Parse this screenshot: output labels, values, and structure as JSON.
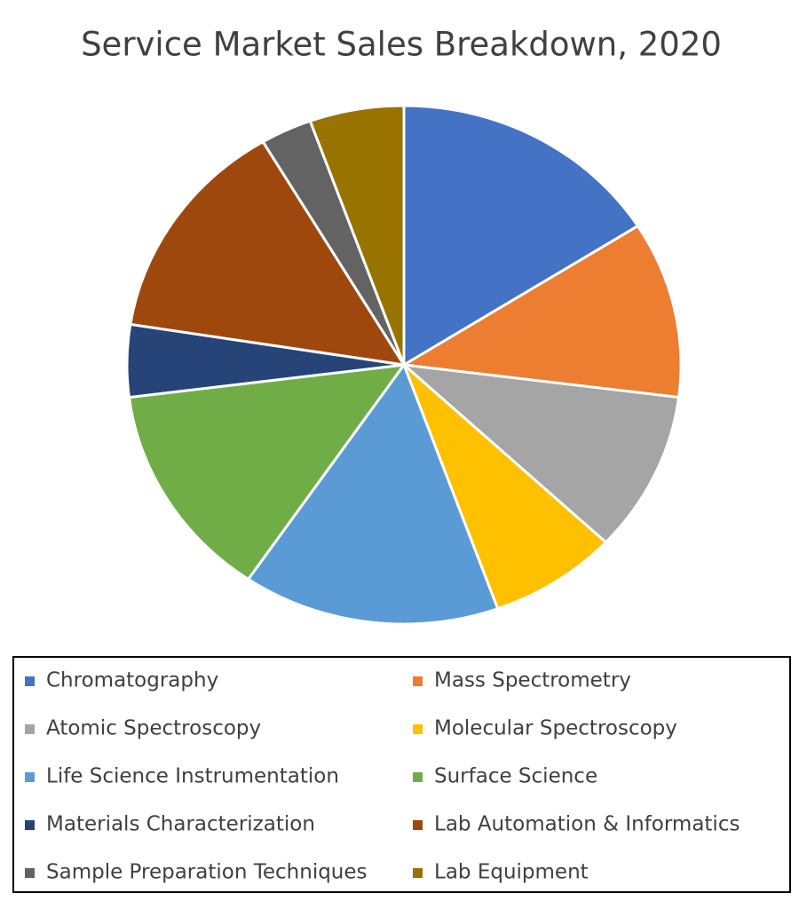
{
  "chart_data": {
    "type": "pie",
    "title": "Service Market Sales Breakdown, 2020",
    "categories": [
      "Chromatography",
      "Mass Spectrometry",
      "Atomic Spectroscopy",
      "Molecular Spectroscopy",
      "Life Science Instrumentation",
      "Surface Science",
      "Materials Characterization",
      "Lab Automation & Informatics",
      "Sample Preparation Techniques",
      "Lab Equipment"
    ],
    "values": [
      16,
      11,
      10,
      7.5,
      15,
      13.5,
      4.5,
      14,
      3,
      5.5
    ],
    "colors": [
      "#4472c4",
      "#ed7d31",
      "#a5a5a5",
      "#ffc000",
      "#5b9bd5",
      "#70ad47",
      "#264478",
      "#9e480e",
      "#636363",
      "#997300"
    ],
    "legend": "bottom"
  }
}
